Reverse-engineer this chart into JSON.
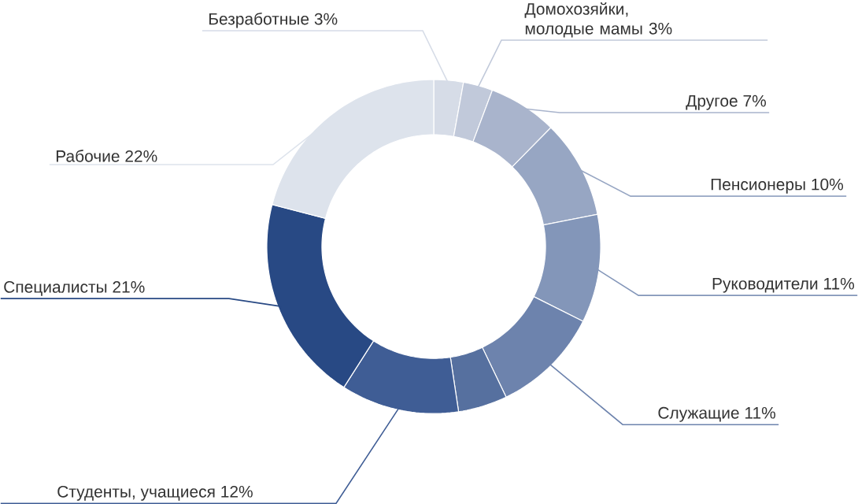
{
  "chart_data": {
    "type": "donut",
    "categories": [
      "Безработные",
      "Домохозяйки, молодые мамы",
      "Другое",
      "Пенсионеры",
      "Руководители",
      "Служащие",
      null,
      "Студенты, учащиеся",
      "Специалисты",
      "Рабочие"
    ],
    "values": [
      3,
      3,
      7,
      10,
      11,
      11,
      5,
      12,
      21,
      22
    ],
    "value_labels": [
      "3%",
      "3%",
      "7%",
      "10%",
      "11%",
      "11%",
      null,
      "12%",
      "21%",
      "22%"
    ],
    "colors": [
      "#d6dce7",
      "#c1c9da",
      "#a9b4cc",
      "#97a6c3",
      "#8396b9",
      "#6d83ad",
      "#56709f",
      "#3f5d95",
      "#284984",
      "#dde3ec"
    ]
  }
}
